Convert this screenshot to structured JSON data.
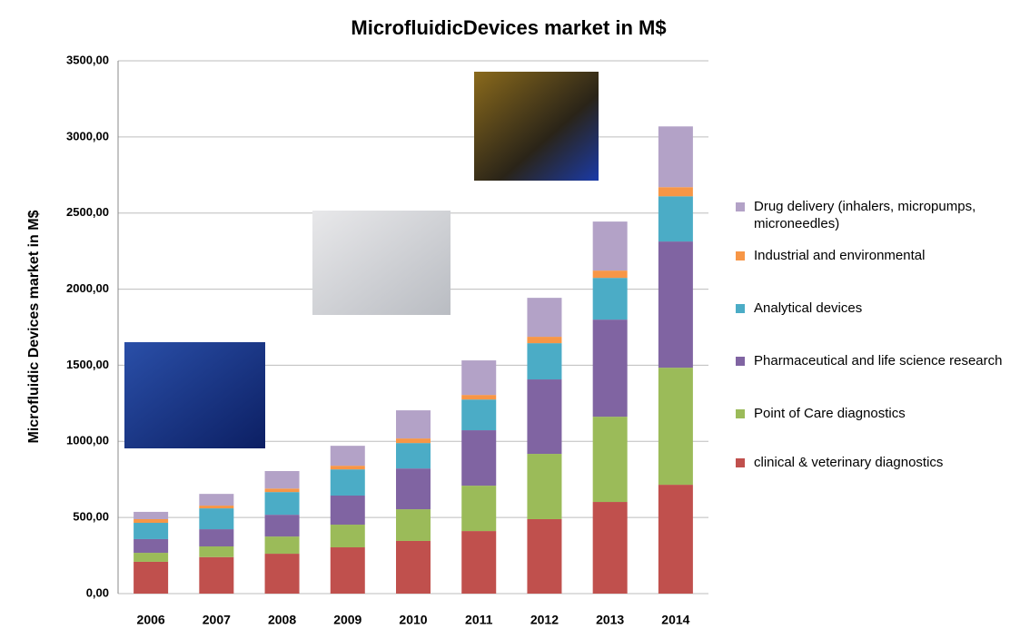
{
  "chart_data": {
    "type": "stacked_bar",
    "title": "MicrofluidicDevices market in M$",
    "y_label": "Microfluidic Devices market in M$",
    "categories": [
      "2006",
      "2007",
      "2008",
      "2009",
      "2010",
      "2011",
      "2012",
      "2013",
      "2014"
    ],
    "series": [
      {
        "name": "clinical & veterinary diagnostics",
        "color": "#c0504d",
        "values": [
          209,
          240,
          262,
          304,
          346,
          411,
          489,
          602,
          715
        ]
      },
      {
        "name": "Point of Care diagnostics",
        "color": "#9bbb59",
        "values": [
          59,
          70,
          113,
          149,
          208,
          298,
          429,
          560,
          769
        ]
      },
      {
        "name": "Pharmaceutical and life science research",
        "color": "#8064a2",
        "values": [
          90,
          113,
          143,
          191,
          268,
          364,
          489,
          638,
          829
        ]
      },
      {
        "name": "Analytical devices",
        "color": "#4bacc6",
        "values": [
          107,
          137,
          149,
          172,
          167,
          202,
          238,
          274,
          297
        ]
      },
      {
        "name": "Industrial and environmental",
        "color": "#f79646",
        "values": [
          24,
          18,
          23,
          24,
          30,
          30,
          42,
          48,
          60
        ]
      },
      {
        "name": "Drug delivery  (inhalers, micropumps, microneedles)",
        "color": "#b3a2c7",
        "values": [
          48,
          77,
          115,
          131,
          185,
          227,
          256,
          322,
          399
        ]
      }
    ],
    "ylim": [
      0,
      3500
    ],
    "yticks": [
      {
        "value": 0,
        "label": "0,00"
      },
      {
        "value": 500,
        "label": "500,00"
      },
      {
        "value": 1000,
        "label": "1000,00"
      },
      {
        "value": 1500,
        "label": "1500,00"
      },
      {
        "value": 2000,
        "label": "2000,00"
      },
      {
        "value": 2500,
        "label": "2500,00"
      },
      {
        "value": 3000,
        "label": "3000,00"
      },
      {
        "value": 3500,
        "label": "3500,00"
      }
    ],
    "grid": true
  }
}
